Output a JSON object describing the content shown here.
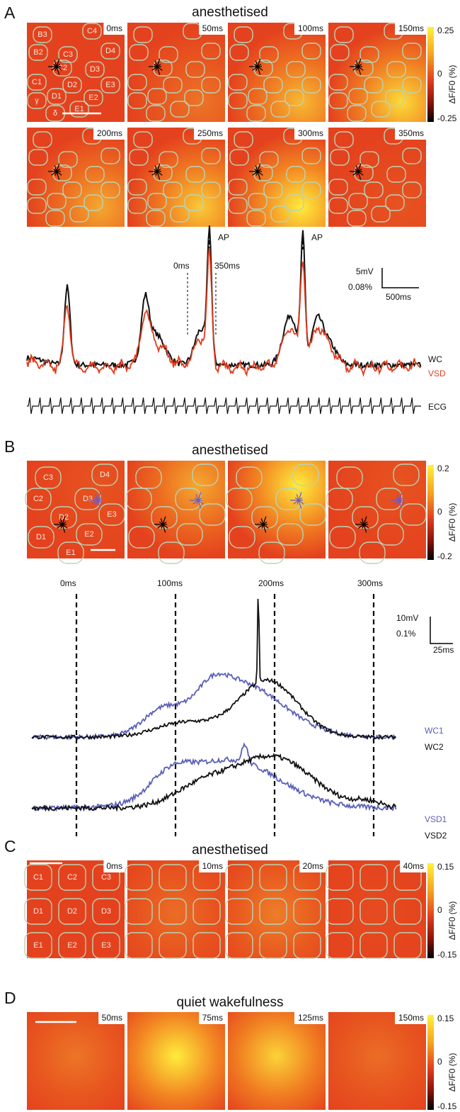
{
  "panels": [
    {
      "label": "A",
      "title": "anesthetised",
      "frames": [
        "0ms",
        "50ms",
        "100ms",
        "150ms",
        "200ms",
        "250ms",
        "300ms",
        "350ms"
      ],
      "barrels": [
        "B3",
        "C4",
        "B2",
        "C3",
        "D4",
        "C2",
        "D3",
        "C1",
        "D2",
        "E3",
        "γ",
        "D1",
        "E2",
        "δ",
        "E1"
      ],
      "colorbar": {
        "ticks": [
          "0.25",
          "0",
          "-0.25"
        ],
        "label": "ΔF/F0 (%)"
      },
      "trace": {
        "annotations": [
          "AP",
          "AP",
          "0ms",
          "350ms"
        ],
        "scale": [
          "5mV",
          "0.08%",
          "500ms"
        ],
        "legend": [
          "WC",
          "VSD",
          "ECG"
        ]
      }
    },
    {
      "label": "B",
      "title": "anesthetised",
      "frames": [],
      "barrels": [
        "C3",
        "D4",
        "C2",
        "D3",
        "E3",
        "D2",
        "E2",
        "D1",
        "E1"
      ],
      "colorbar": {
        "ticks": [
          "0.2",
          "0",
          "-0.2"
        ],
        "label": "ΔF/F0 (%)"
      },
      "trace": {
        "annotations": [
          "0ms",
          "100ms",
          "200ms",
          "300ms"
        ],
        "scale": [
          "10mV",
          "0.1%",
          "25ms"
        ],
        "legend": [
          "WC1",
          "WC2",
          "VSD1",
          "VSD2"
        ]
      }
    },
    {
      "label": "C",
      "title": "anesthetised",
      "frames": [
        "0ms",
        "10ms",
        "20ms",
        "40ms"
      ],
      "barrels": [
        "C1",
        "C2",
        "C3",
        "D1",
        "D2",
        "D3",
        "E1",
        "E2",
        "E3"
      ],
      "colorbar": {
        "ticks": [
          "0.15",
          "0",
          "-0.15"
        ],
        "label": "ΔF/F0 (%)"
      }
    },
    {
      "label": "D",
      "title": "quiet wakefulness",
      "frames": [
        "50ms",
        "75ms",
        "125ms",
        "150ms"
      ],
      "barrels": [],
      "colorbar": {
        "ticks": [
          "0.15",
          "0",
          "-0.15"
        ],
        "label": "ΔF/F0 (%)"
      }
    }
  ]
}
